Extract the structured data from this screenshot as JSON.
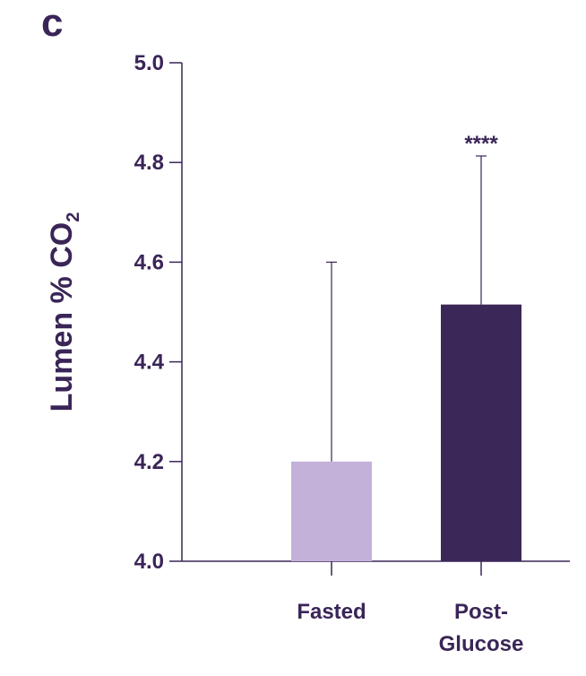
{
  "panel_label": "c",
  "chart_data": {
    "type": "bar",
    "categories": [
      "Fasted",
      "Post-\nGlucose"
    ],
    "values": [
      4.2,
      4.515
    ],
    "error_upper": [
      4.6,
      4.813
    ],
    "significance": [
      "",
      "****"
    ],
    "colors": [
      "#c3b1da",
      "#3b2758"
    ],
    "ylabel": "Lumen % CO",
    "ylabel_subscript": "2",
    "xlabel": "",
    "title": "",
    "ylim": [
      4.0,
      5.0
    ],
    "yticks": [
      "4.0",
      "4.2",
      "4.4",
      "4.6",
      "4.8",
      "5.0"
    ],
    "grid": false,
    "legend": "none"
  }
}
